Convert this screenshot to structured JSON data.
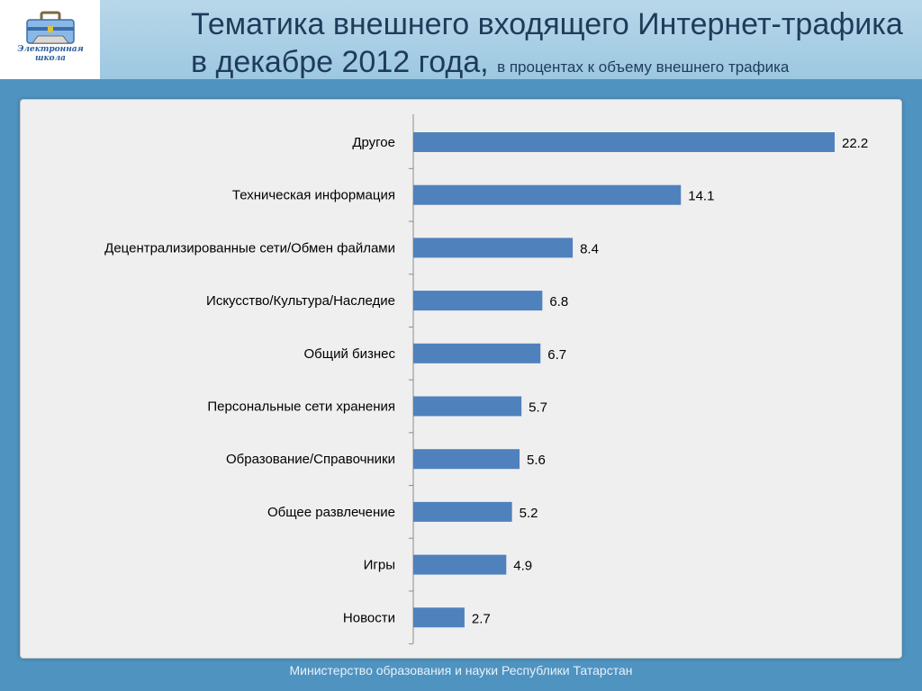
{
  "header": {
    "title_main": "Тематика внешнего входящего Интернет-трафика",
    "title_line2": "в декабре 2012 года,",
    "title_sub": "в процентах к объему внешнего трафика"
  },
  "logo": {
    "caption": "Электронная школа"
  },
  "footer": {
    "text": "Министерство образования и науки  Республики Татарстан"
  },
  "colors": {
    "bar": "#4f81bd",
    "header": "#9cc8e1",
    "background": "#4f93c1"
  },
  "chart_data": {
    "type": "bar",
    "orientation": "horizontal",
    "categories": [
      "Другое",
      "Техническая информация",
      "Децентрализированные сети/Обмен файлами",
      "Искусство/Культура/Наследие",
      "Общий бизнес",
      "Персональные сети хранения",
      "Образование/Справочники",
      "Общее развлечение",
      "Игры",
      "Новости"
    ],
    "values": [
      22.2,
      14.1,
      8.4,
      6.8,
      6.7,
      5.7,
      5.6,
      5.2,
      4.9,
      2.7
    ],
    "value_labels": [
      "22.2",
      "14.1",
      "8.4",
      "6.8",
      "6.7",
      "5.7",
      "5.6",
      "5.2",
      "4.9",
      "2.7"
    ],
    "xlim": [
      0,
      22.2
    ],
    "grid": false,
    "data_labels": true
  }
}
